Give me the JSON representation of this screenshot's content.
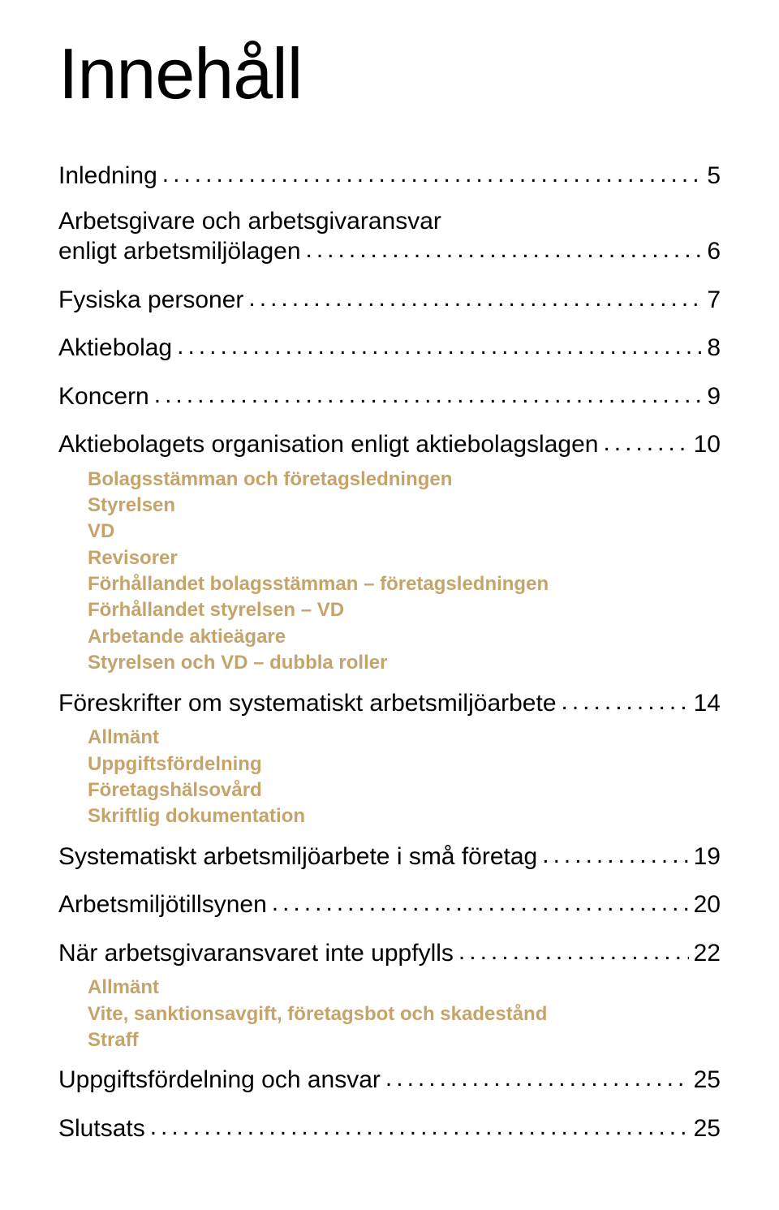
{
  "title": "Innehåll",
  "colors": {
    "text": "#000000",
    "accent": "#c6a36a",
    "background": "#ffffff"
  },
  "typography": {
    "title_fontsize_pt": 66,
    "main_fontsize_pt": 22,
    "sub_fontsize_pt": 18,
    "title_family": "Helvetica",
    "body_family": "Helvetica"
  },
  "toc": [
    {
      "label": "Inledning",
      "page": "5",
      "subs": []
    },
    {
      "label_lines": [
        "Arbetsgivare och arbetsgivaransvar",
        "enligt arbetsmiljölagen"
      ],
      "page": "6",
      "subs": []
    },
    {
      "label": "Fysiska personer",
      "page": "7",
      "subs": []
    },
    {
      "label": "Aktiebolag",
      "page": "8",
      "subs": []
    },
    {
      "label": "Koncern",
      "page": "9",
      "subs": []
    },
    {
      "label": "Aktiebolagets organisation enligt aktiebolagslagen",
      "page": "10",
      "subs": [
        "Bolagsstämman och företagsledningen",
        "Styrelsen",
        "VD",
        "Revisorer",
        "Förhållandet bolagsstämman – företagsledningen",
        "Förhållandet styrelsen – VD",
        "Arbetande aktieägare",
        "Styrelsen och VD – dubbla roller"
      ]
    },
    {
      "label": "Föreskrifter om systematiskt arbetsmiljöarbete",
      "page": "14",
      "subs": [
        "Allmänt",
        "Uppgiftsfördelning",
        "Företagshälsovård",
        "Skriftlig dokumentation"
      ]
    },
    {
      "label": "Systematiskt arbetsmiljöarbete i små företag",
      "page": "19",
      "subs": []
    },
    {
      "label": "Arbetsmiljötillsynen",
      "page": "20",
      "subs": []
    },
    {
      "label": "När arbetsgivaransvaret inte uppfylls",
      "page": "22",
      "subs": [
        "Allmänt",
        "Vite, sanktionsavgift, företagsbot och skadestånd",
        "Straff"
      ]
    },
    {
      "label": "Uppgiftsfördelning och ansvar",
      "page": "25",
      "subs": []
    },
    {
      "label": "Slutsats",
      "page": "25",
      "subs": []
    }
  ]
}
